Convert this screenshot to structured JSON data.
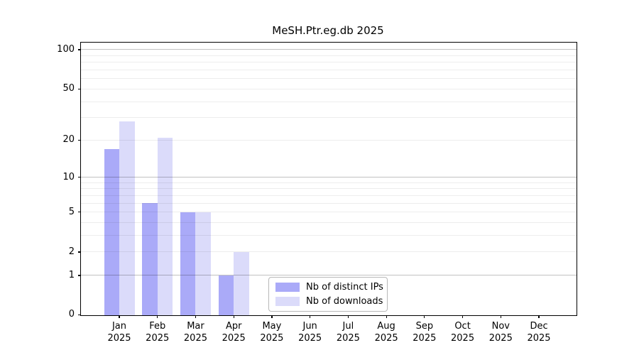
{
  "chart_data": {
    "type": "bar",
    "title": "MeSH.Ptr.eg.db 2025",
    "categories": [
      "Jan",
      "Feb",
      "Mar",
      "Apr",
      "May",
      "Jun",
      "Jul",
      "Aug",
      "Sep",
      "Oct",
      "Nov",
      "Dec"
    ],
    "x_tick_year": "2025",
    "series": [
      {
        "name": "Nb of distinct IPs",
        "color": "#aaaaf8",
        "values": [
          17,
          6,
          5,
          1,
          0,
          0,
          0,
          0,
          0,
          0,
          0,
          0
        ]
      },
      {
        "name": "Nb of downloads",
        "color": "#dbdbfa",
        "values": [
          28,
          21,
          5,
          2,
          0,
          0,
          0,
          0,
          0,
          0,
          0,
          0
        ]
      }
    ],
    "xlabel": "",
    "ylabel": "",
    "y_scale": "log1p",
    "y_ticks": [
      0,
      1,
      2,
      5,
      10,
      20,
      50,
      100
    ],
    "y_major_gridlines": [
      1,
      10,
      100
    ],
    "y_minor_gridlines": [
      2,
      3,
      4,
      5,
      6,
      7,
      8,
      9,
      20,
      30,
      40,
      50,
      60,
      70,
      80,
      90
    ],
    "ylim": [
      0,
      113
    ],
    "grid": true,
    "legend_position": "inside-lower-center",
    "grid_major_color": "rgba(0,0,0,0.24)",
    "grid_minor_color": "rgba(0,0,0,0.07)"
  }
}
